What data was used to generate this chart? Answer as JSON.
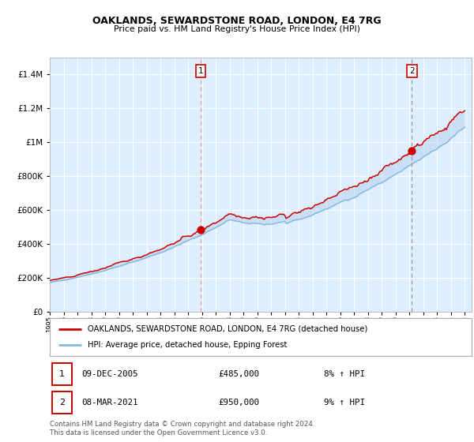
{
  "title": "OAKLANDS, SEWARDSTONE ROAD, LONDON, E4 7RG",
  "subtitle": "Price paid vs. HM Land Registry's House Price Index (HPI)",
  "legend_property": "OAKLANDS, SEWARDSTONE ROAD, LONDON, E4 7RG (detached house)",
  "legend_hpi": "HPI: Average price, detached house, Epping Forest",
  "transaction1_date": "09-DEC-2005",
  "transaction1_price": "£485,000",
  "transaction1_hpi": "8% ↑ HPI",
  "transaction2_date": "08-MAR-2021",
  "transaction2_price": "£950,000",
  "transaction2_hpi": "9% ↑ HPI",
  "footer": "Contains HM Land Registry data © Crown copyright and database right 2024.\nThis data is licensed under the Open Government Licence v3.0.",
  "color_property": "#cc0000",
  "color_hpi": "#aac8e8",
  "color_hpi_line": "#88b8e0",
  "color_vline1": "#ee9999",
  "color_vline2": "#999999",
  "background_color": "#ddeeff",
  "ylim_max": 1500000,
  "year_start": 1995,
  "year_end": 2025,
  "transaction1_year": 2005.92,
  "transaction2_year": 2021.18,
  "transaction1_price_val": 485000,
  "transaction2_price_val": 950000,
  "hpi_at_t1": 450000,
  "hpi_at_t2": 870000
}
